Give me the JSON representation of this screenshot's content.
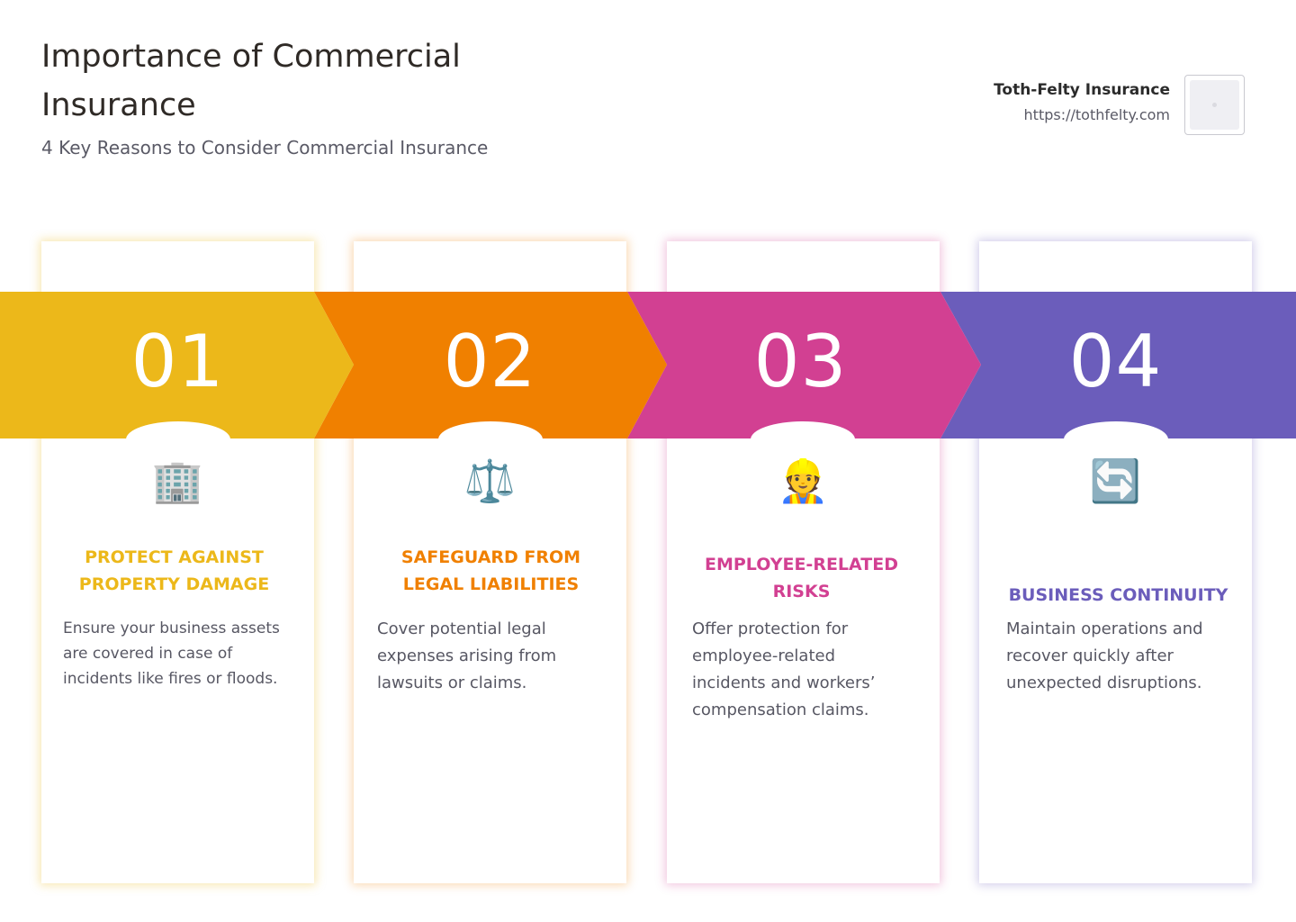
{
  "header": {
    "title": "Importance of Commercial Insurance",
    "subtitle": "4 Key Reasons to Consider Commercial Insurance"
  },
  "brand": {
    "name": "Toth-Felty Insurance",
    "url": "https://tothfelty.com"
  },
  "colors": {
    "yellow": "#ECB81A",
    "orange": "#F08000",
    "pink": "#D24092",
    "purple": "#6B5DBB"
  },
  "steps": [
    {
      "number": "01",
      "icon": "office-building-icon",
      "icon_glyph": "🏢",
      "title": "PROTECT AGAINST PROPERTY DAMAGE",
      "description": "Ensure your business assets are covered in case of incidents like fires or floods."
    },
    {
      "number": "02",
      "icon": "balance-scale-icon",
      "icon_glyph": "⚖️",
      "title": "SAFEGUARD FROM LEGAL LIABILITIES",
      "description": "Cover potential legal expenses arising from lawsuits or claims."
    },
    {
      "number": "03",
      "icon": "construction-worker-icon",
      "icon_glyph": "👷",
      "title": "EMPLOYEE-RELATED RISKS",
      "description": "Offer protection for employee-related incidents and workers’ compensation claims."
    },
    {
      "number": "04",
      "icon": "refresh-arrows-icon",
      "icon_glyph": "🔄",
      "title": "BUSINESS CONTINUITY",
      "description": "Maintain operations and recover quickly after unexpected disruptions."
    }
  ]
}
